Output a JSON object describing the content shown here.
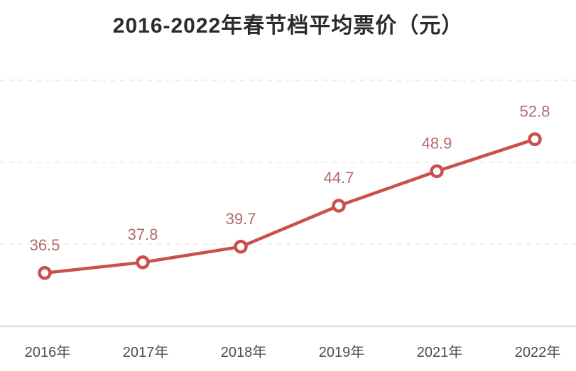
{
  "chart_data": {
    "type": "line",
    "title": "2016-2022年春节档平均票价（元）",
    "categories": [
      "2016年",
      "2017年",
      "2018年",
      "2019年",
      "2021年",
      "2022年"
    ],
    "values": [
      36.5,
      37.8,
      39.7,
      44.7,
      48.9,
      52.8
    ],
    "series_name": "春节档平均票价",
    "unit": "元",
    "xlabel": "",
    "ylabel": "",
    "ylim": [
      30,
      63.2
    ],
    "gridline_values": [
      40,
      50,
      60
    ],
    "grid": "horizontal-dashed",
    "legend": "none",
    "marker_style": "open-circle",
    "colors": {
      "line": "#c9504e",
      "marker_fill": "#ffffff",
      "marker_stroke": "#c9504e",
      "value_label": "#b26a6a",
      "axis_line": "#dedede",
      "gridline": "#e9e9e9",
      "tick_label": "#4d4d4d",
      "title": "#2b2b2b"
    }
  }
}
